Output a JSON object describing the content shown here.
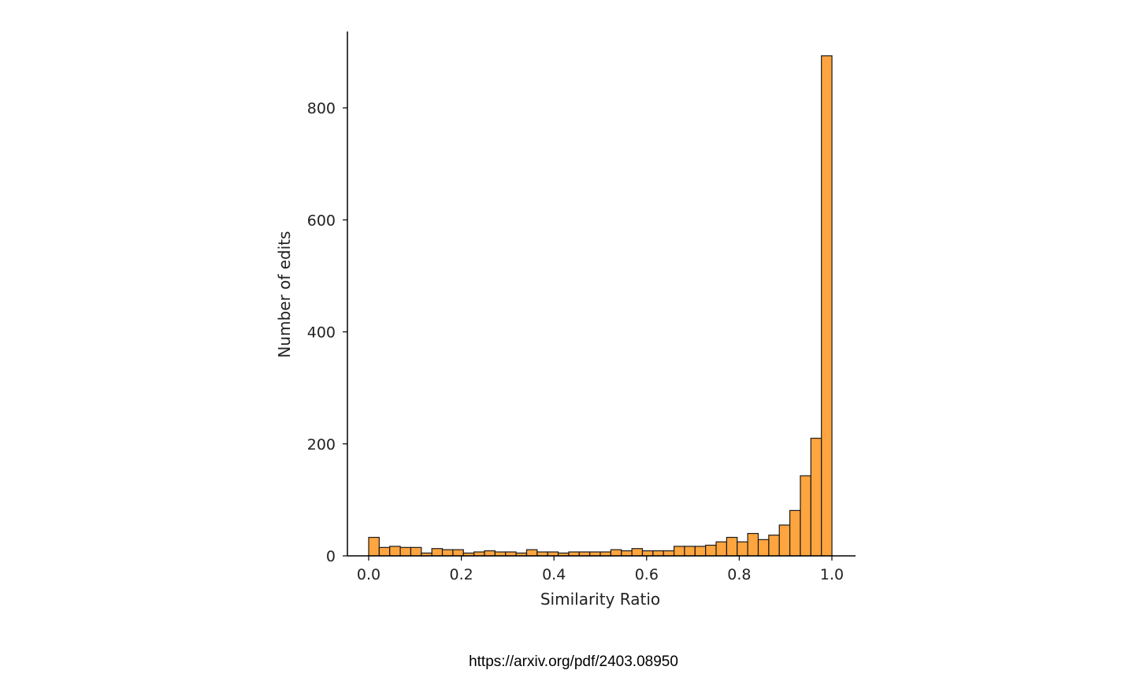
{
  "chart_data": {
    "type": "bar",
    "title": "",
    "xlabel": "Similarity Ratio",
    "ylabel": "Number of edits",
    "xlim": [
      0.0,
      1.0
    ],
    "ylim": [
      0,
      935
    ],
    "xticks": [
      "0.0",
      "0.2",
      "0.4",
      "0.6",
      "0.8",
      "1.0"
    ],
    "yticks": [
      "0",
      "200",
      "400",
      "600",
      "800"
    ],
    "grid": false,
    "bin_width": 0.02273,
    "bin_start": 0.0,
    "values": [
      33,
      15,
      17,
      15,
      15,
      5,
      13,
      11,
      11,
      5,
      7,
      9,
      7,
      7,
      5,
      11,
      7,
      7,
      5,
      7,
      7,
      7,
      7,
      11,
      9,
      13,
      9,
      9,
      9,
      17,
      17,
      17,
      19,
      25,
      33,
      25,
      40,
      29,
      37,
      55,
      81,
      143,
      210,
      893
    ],
    "bar_color": "#ffa53f",
    "edge_color": "#1a1a1a"
  },
  "source": {
    "url": "https://arxiv.org/pdf/2403.08950"
  }
}
